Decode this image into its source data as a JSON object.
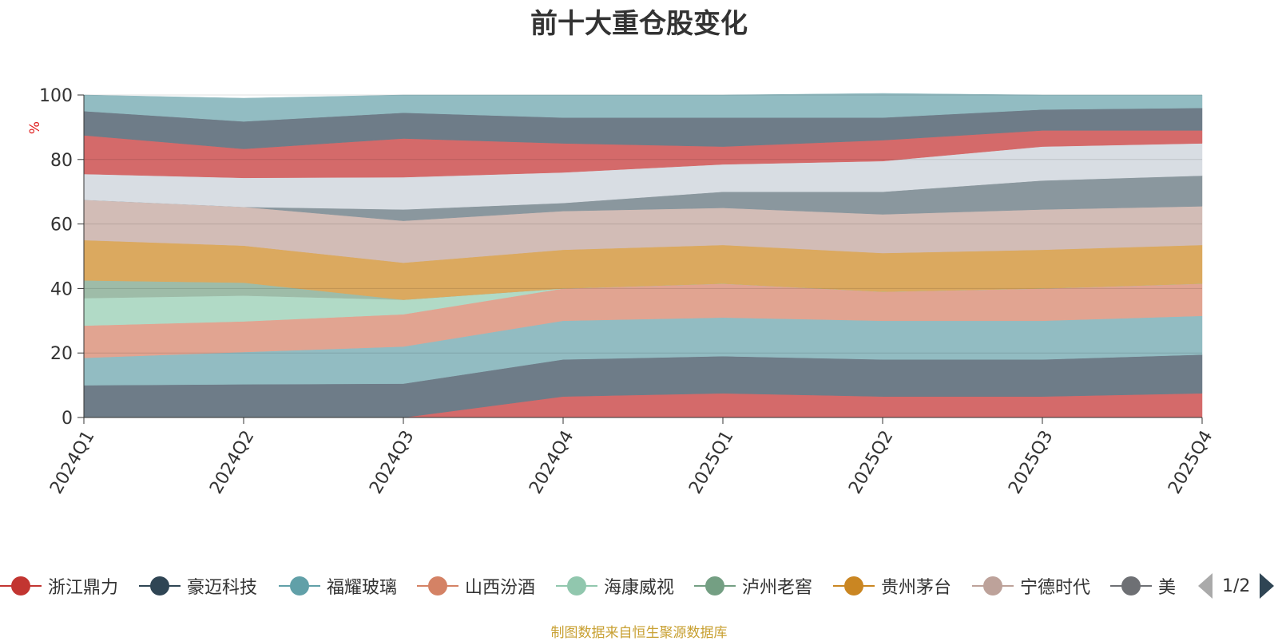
{
  "chart_data": {
    "type": "area",
    "stacked": true,
    "title": "前十大重仓股变化",
    "ylabel": "%",
    "ylim": [
      0,
      100
    ],
    "yticks": [
      0,
      20,
      40,
      60,
      80,
      100
    ],
    "categories": [
      "2024Q1",
      "2024Q2",
      "2024Q3",
      "2024Q4",
      "2025Q1",
      "2025Q2",
      "2025Q3",
      "2025Q4"
    ],
    "series": [
      {
        "name": "浙江鼎力",
        "color": "#d46a6a",
        "values": [
          0,
          0,
          0,
          6.5,
          7.5,
          6.5,
          6.5,
          7.5
        ]
      },
      {
        "name": "豪迈科技",
        "color": "#6e7c88",
        "values": [
          10,
          10.3,
          10.5,
          11.5,
          11.5,
          11.5,
          11.5,
          12
        ]
      },
      {
        "name": "福耀玻璃",
        "color": "#92bcc2",
        "values": [
          8.5,
          10,
          11.5,
          12,
          12,
          12,
          12,
          12
        ]
      },
      {
        "name": "山西汾酒",
        "color": "#e1a491",
        "values": [
          10,
          9.5,
          10,
          10,
          10.5,
          9,
          10,
          10
        ]
      },
      {
        "name": "海康威视",
        "color": "#b1dac6",
        "values": [
          8.5,
          8,
          4.5,
          0,
          0,
          0,
          0,
          0
        ]
      },
      {
        "name": "泸州老窖",
        "color": "#9ebca8",
        "values": [
          5.5,
          4,
          0,
          0,
          0,
          0,
          0,
          0
        ]
      },
      {
        "name": "贵州茅台",
        "color": "#dba95f",
        "values": [
          12.5,
          11.5,
          11.5,
          12,
          12,
          12,
          12,
          12
        ]
      },
      {
        "name": "宁德时代",
        "color": "#d2bcb6",
        "values": [
          12.5,
          12,
          13,
          12,
          11.5,
          12,
          12.5,
          12
        ]
      },
      {
        "name": "",
        "color": "#8a979e",
        "values": [
          0,
          0,
          3.5,
          2.5,
          5,
          7,
          9,
          9.5
        ]
      },
      {
        "name": "",
        "color": "#d8dde3",
        "values": [
          8,
          9,
          10,
          9.5,
          8.5,
          9.5,
          10.5,
          10
        ]
      },
      {
        "name": "",
        "color": "#d46a6a",
        "values": [
          12,
          9,
          12,
          9,
          5.5,
          6.5,
          5,
          4
        ]
      },
      {
        "name": "",
        "color": "#6e7c88",
        "values": [
          7.5,
          8.5,
          8,
          8,
          9,
          7,
          6.5,
          7
        ]
      },
      {
        "name": "",
        "color": "#92bcc2",
        "values": [
          5,
          7.2,
          5.5,
          7,
          7,
          7.5,
          4.5,
          4
        ]
      }
    ]
  },
  "legend": {
    "items": [
      {
        "label": "浙江鼎力",
        "color": "#c23531"
      },
      {
        "label": "豪迈科技",
        "color": "#2f4554"
      },
      {
        "label": "福耀玻璃",
        "color": "#61a0a8"
      },
      {
        "label": "山西汾酒",
        "color": "#d48265"
      },
      {
        "label": "海康威视",
        "color": "#91c7ae"
      },
      {
        "label": "泸州老窖",
        "color": "#749f83"
      },
      {
        "label": "贵州茅台",
        "color": "#ca8622"
      },
      {
        "label": "宁德时代",
        "color": "#bda29a"
      },
      {
        "label": "美",
        "color": "#6e7074"
      }
    ],
    "page": "1/2"
  },
  "source_note": "制图数据来自恒生聚源数据库"
}
